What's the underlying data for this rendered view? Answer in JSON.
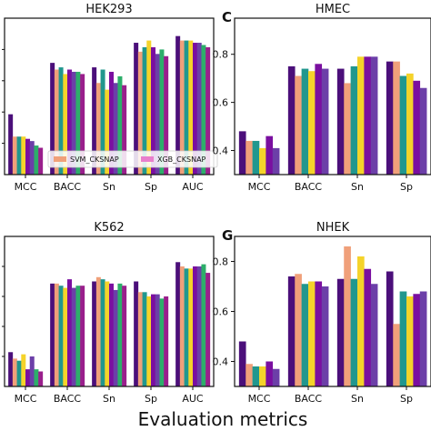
{
  "colors": [
    "#4b0f7a",
    "#f0a07a",
    "#21978e",
    "#f5d32a",
    "#7a0fa0",
    "#6c3fa8",
    "#2dae6a",
    "#9a1f8c",
    "#e87fcc",
    "#d69a6a",
    "#c89080"
  ],
  "xlabel": "Evaluation metrics",
  "chart_data": [
    {
      "type": "bar",
      "title": "HEK293",
      "panel_letter": "",
      "categories": [
        "MCC",
        "BACC",
        "Sn",
        "Sp",
        "AUC"
      ],
      "ylim": [
        0.3,
        1.0
      ],
      "yticks": [],
      "legend": [
        {
          "name": "SVM_CKSNAP",
          "color": "#f0a07a"
        },
        {
          "name": "XGB_CKSNAP",
          "color": "#e87fcc"
        }
      ],
      "legend_position": "lower-center",
      "values": [
        [
          0.57,
          0.47,
          0.47,
          0.47,
          0.46,
          0.45,
          0.43,
          0.42
        ],
        [
          0.8,
          0.77,
          0.78,
          0.75,
          0.77,
          0.76,
          0.76,
          0.75
        ],
        [
          0.78,
          0.71,
          0.77,
          0.68,
          0.76,
          0.71,
          0.74,
          0.7
        ],
        [
          0.89,
          0.85,
          0.87,
          0.9,
          0.87,
          0.84,
          0.86,
          0.83
        ],
        [
          0.92,
          0.9,
          0.9,
          0.9,
          0.89,
          0.89,
          0.88,
          0.87
        ]
      ]
    },
    {
      "type": "bar",
      "title": "HMEC",
      "panel_letter": "C",
      "categories": [
        "MCC",
        "BACC",
        "Sn",
        "Sp"
      ],
      "ylim": [
        0.3,
        0.95
      ],
      "yticks": [
        "0.4",
        "0.6",
        "0.8"
      ],
      "values": [
        [
          0.48,
          0.44,
          0.44,
          0.41,
          0.46,
          0.41
        ],
        [
          0.75,
          0.71,
          0.74,
          0.73,
          0.76,
          0.74
        ],
        [
          0.74,
          0.68,
          0.75,
          0.79,
          0.79,
          0.79
        ],
        [
          0.77,
          0.77,
          0.71,
          0.72,
          0.69,
          0.66
        ]
      ]
    },
    {
      "type": "bar",
      "title": "K562",
      "panel_letter": "",
      "categories": [
        "MCC",
        "BACC",
        "Sn",
        "Sp",
        "AUC"
      ],
      "ylim": [
        0.3,
        1.0
      ],
      "yticks": [],
      "values": [
        [
          0.46,
          0.43,
          0.42,
          0.45,
          0.38,
          0.44,
          0.38,
          0.37
        ],
        [
          0.78,
          0.78,
          0.77,
          0.76,
          0.8,
          0.76,
          0.77,
          0.77
        ],
        [
          0.79,
          0.81,
          0.8,
          0.79,
          0.78,
          0.75,
          0.78,
          0.77
        ],
        [
          0.79,
          0.74,
          0.74,
          0.72,
          0.73,
          0.73,
          0.71,
          0.72
        ],
        [
          0.88,
          0.86,
          0.85,
          0.85,
          0.86,
          0.86,
          0.87,
          0.83
        ]
      ]
    },
    {
      "type": "bar",
      "title": "NHEK",
      "panel_letter": "G",
      "categories": [
        "MCC",
        "BACC",
        "Sn",
        "Sp"
      ],
      "ylim": [
        0.3,
        0.9
      ],
      "yticks": [
        "0.4",
        "0.6",
        "0.8"
      ],
      "values": [
        [
          0.48,
          0.39,
          0.38,
          0.38,
          0.4,
          0.37
        ],
        [
          0.74,
          0.75,
          0.71,
          0.72,
          0.72,
          0.7
        ],
        [
          0.73,
          0.86,
          0.73,
          0.82,
          0.77,
          0.71
        ],
        [
          0.76,
          0.55,
          0.68,
          0.66,
          0.67,
          0.68
        ]
      ]
    }
  ]
}
